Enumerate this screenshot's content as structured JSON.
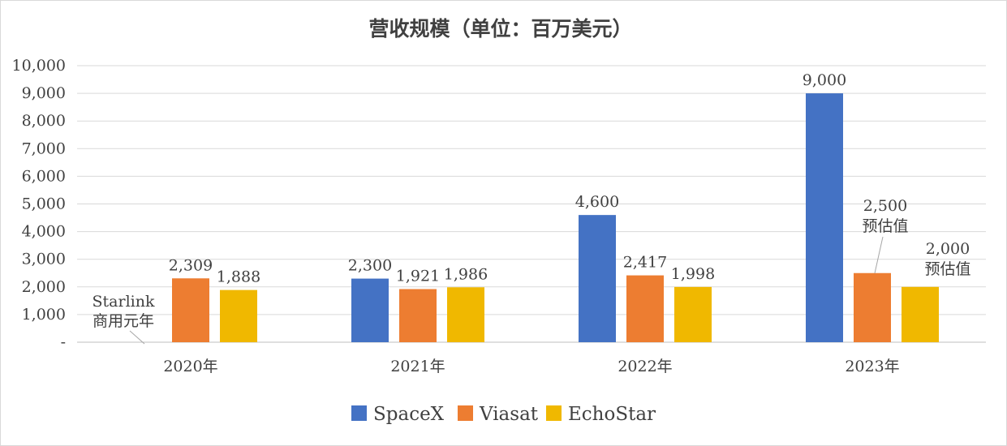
{
  "chart_data": {
    "type": "bar",
    "title": "营收规模（单位：百万美元）",
    "categories": [
      "2020年",
      "2021年",
      "2022年",
      "2023年"
    ],
    "series": [
      {
        "name": "SpaceX",
        "color": "#4472C4",
        "values": [
          null,
          2300,
          4600,
          9000
        ],
        "labels": [
          "",
          "2,300",
          "4,600",
          "9,000"
        ]
      },
      {
        "name": "Viasat",
        "color": "#ED7D31",
        "values": [
          2309,
          1921,
          2417,
          2500
        ],
        "labels": [
          "2,309",
          "1,921",
          "2,417",
          "2,500"
        ]
      },
      {
        "name": "EchoStar",
        "color": "#F0B800",
        "values": [
          1888,
          1986,
          1998,
          2000
        ],
        "labels": [
          "1,888",
          "1,986",
          "1,998",
          "2,000"
        ]
      }
    ],
    "ylim": [
      0,
      10000
    ],
    "y_ticks": [
      "-",
      "1,000",
      "2,000",
      "3,000",
      "4,000",
      "5,000",
      "6,000",
      "7,000",
      "8,000",
      "9,000",
      "10,000"
    ],
    "grid": true,
    "legend_position": "bottom",
    "annotations": {
      "starlink_line1": "Starlink",
      "starlink_line2": "商用元年",
      "estimate_viasat": "预估值",
      "estimate_echostar": "预估值"
    }
  }
}
